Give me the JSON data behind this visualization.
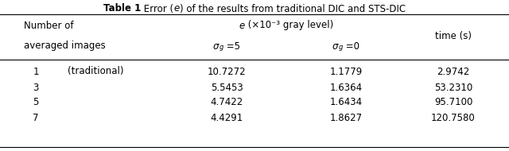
{
  "title_bold": "Table 1",
  "title_normal": " Error (",
  "title_italic": "e",
  "title_end": ") of the results from traditional DIC and STS-DIC",
  "header1_col0": "Number of",
  "header2_col0": "averaged images",
  "header1_mid": "e",
  "header1_mid_rest": " (×10⁻³ gray level)",
  "header2_col1_sigma": "σ",
  "header2_col1_sub": "g",
  "header2_col1_val": " =5",
  "header2_col2_sigma": "σ",
  "header2_col2_sub": "g",
  "header2_col2_val": " =0",
  "header_col3": "time (s)",
  "rows": [
    [
      "1",
      "(traditional)",
      "10.7272",
      "1.1779",
      "2.9742"
    ],
    [
      "3",
      "",
      "5.5453",
      "1.6364",
      "53.2310"
    ],
    [
      "5",
      "",
      "4.7422",
      "1.6434",
      "95.7100"
    ],
    [
      "7",
      "",
      "4.4291",
      "1.8627",
      "120.7580"
    ]
  ],
  "bg_color": "#ffffff",
  "text_color": "#000000",
  "line_color": "#000000",
  "font_size": 8.5,
  "font_family": "DejaVu Sans"
}
